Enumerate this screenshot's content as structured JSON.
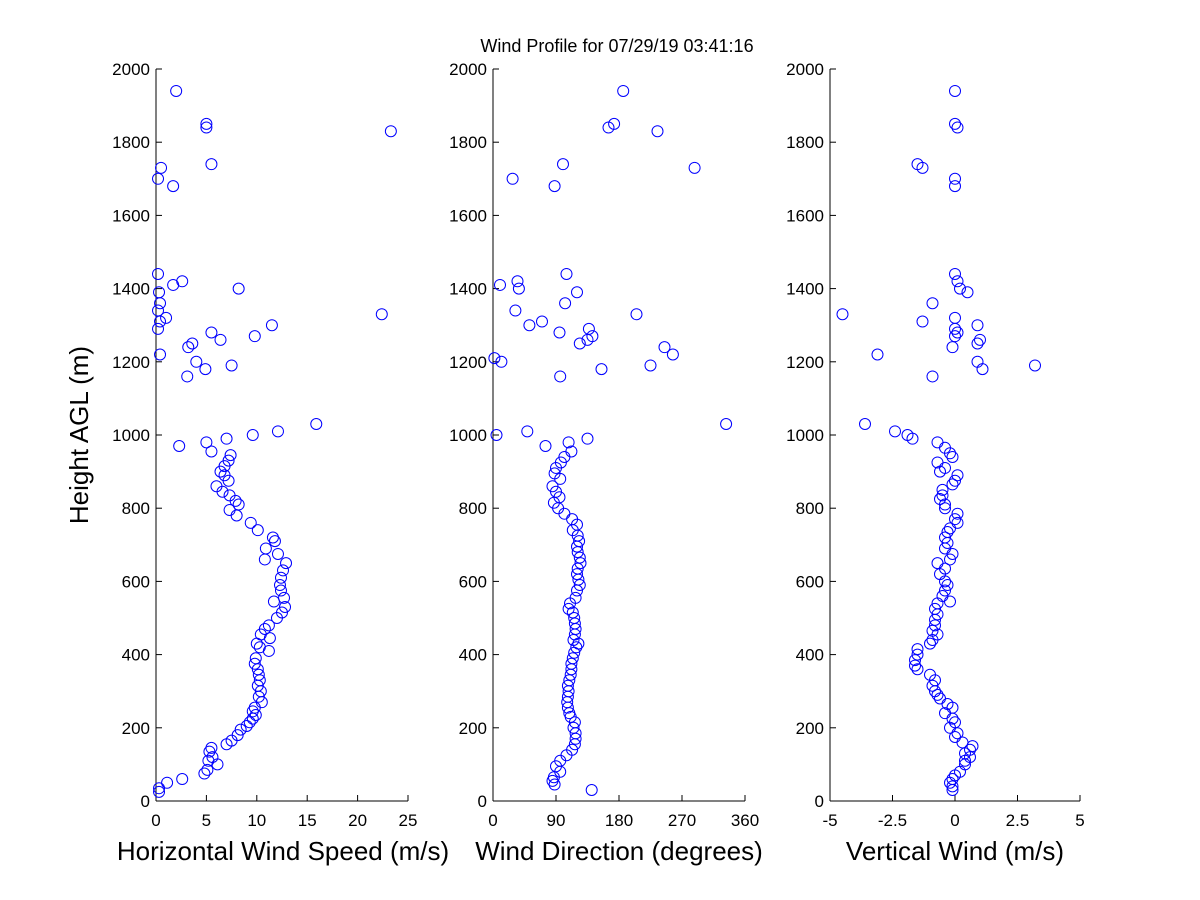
{
  "chart_data": {
    "title": "Wind Profile for  07/29/19 03:41:16",
    "ylabel": "Height AGL (m)",
    "ylim": [
      0,
      2000
    ],
    "yticks": [
      "0",
      "200",
      "400",
      "600",
      "800",
      "1000",
      "1200",
      "1400",
      "1600",
      "1800",
      "2000"
    ],
    "subplots": [
      {
        "id": "speed",
        "type": "scatter",
        "xlabel": "Horizontal Wind Speed (m/s)",
        "xlim": [
          0,
          25
        ],
        "xticks": [
          0,
          5,
          10,
          15,
          20,
          25
        ],
        "xtick_labels": [
          "0",
          "5",
          "10",
          "15",
          "20",
          "25"
        ],
        "color": "#0000ff",
        "points": [
          [
            2,
            1940
          ],
          [
            5,
            1850
          ],
          [
            5,
            1840
          ],
          [
            23.3,
            1830
          ],
          [
            5.5,
            1740
          ],
          [
            0.5,
            1730
          ],
          [
            0.2,
            1700
          ],
          [
            1.7,
            1680
          ],
          [
            0.2,
            1440
          ],
          [
            2.6,
            1420
          ],
          [
            1.7,
            1410
          ],
          [
            8.2,
            1400
          ],
          [
            0.3,
            1390
          ],
          [
            0.4,
            1360
          ],
          [
            0.2,
            1340
          ],
          [
            22.4,
            1330
          ],
          [
            1,
            1320
          ],
          [
            0.4,
            1310
          ],
          [
            11.5,
            1300
          ],
          [
            0.2,
            1290
          ],
          [
            5.5,
            1280
          ],
          [
            9.8,
            1270
          ],
          [
            6.4,
            1260
          ],
          [
            3.6,
            1250
          ],
          [
            3.2,
            1240
          ],
          [
            0.4,
            1220
          ],
          [
            4,
            1200
          ],
          [
            7.5,
            1190
          ],
          [
            4.9,
            1180
          ],
          [
            3.1,
            1160
          ],
          [
            15.9,
            1030
          ],
          [
            12.1,
            1010
          ],
          [
            9.6,
            1000
          ],
          [
            7,
            990
          ],
          [
            5,
            980
          ],
          [
            2.3,
            970
          ],
          [
            5.5,
            955
          ],
          [
            7.4,
            945
          ],
          [
            7.2,
            930
          ],
          [
            6.8,
            915
          ],
          [
            6.4,
            900
          ],
          [
            6.8,
            890
          ],
          [
            7.2,
            875
          ],
          [
            6,
            860
          ],
          [
            6.6,
            845
          ],
          [
            7.3,
            835
          ],
          [
            7.9,
            820
          ],
          [
            8.2,
            810
          ],
          [
            7.3,
            795
          ],
          [
            8,
            780
          ],
          [
            9.4,
            760
          ],
          [
            10.1,
            740
          ],
          [
            11.6,
            720
          ],
          [
            11.8,
            710
          ],
          [
            10.9,
            690
          ],
          [
            12.1,
            675
          ],
          [
            10.8,
            660
          ],
          [
            12.9,
            650
          ],
          [
            12.6,
            630
          ],
          [
            12.4,
            610
          ],
          [
            12.3,
            590
          ],
          [
            12.4,
            575
          ],
          [
            12.7,
            555
          ],
          [
            11.7,
            545
          ],
          [
            12.8,
            530
          ],
          [
            12.5,
            515
          ],
          [
            12,
            500
          ],
          [
            11.2,
            480
          ],
          [
            10.8,
            470
          ],
          [
            10.4,
            455
          ],
          [
            11.3,
            445
          ],
          [
            10,
            430
          ],
          [
            10.3,
            420
          ],
          [
            11.2,
            410
          ],
          [
            9.9,
            390
          ],
          [
            9.8,
            375
          ],
          [
            10.1,
            360
          ],
          [
            10.2,
            345
          ],
          [
            10.3,
            330
          ],
          [
            10.1,
            315
          ],
          [
            10.4,
            300
          ],
          [
            10.2,
            285
          ],
          [
            10.5,
            270
          ],
          [
            9.8,
            255
          ],
          [
            9.6,
            245
          ],
          [
            9.9,
            235
          ],
          [
            9.6,
            225
          ],
          [
            9.3,
            215
          ],
          [
            9,
            205
          ],
          [
            8.4,
            195
          ],
          [
            8.1,
            180
          ],
          [
            7.5,
            165
          ],
          [
            7,
            155
          ],
          [
            5.5,
            145
          ],
          [
            5.3,
            135
          ],
          [
            5.6,
            120
          ],
          [
            5.2,
            110
          ],
          [
            6.1,
            100
          ],
          [
            5.1,
            85
          ],
          [
            4.8,
            75
          ],
          [
            2.6,
            60
          ],
          [
            1.1,
            50
          ],
          [
            0.3,
            35
          ],
          [
            0.3,
            25
          ]
        ]
      },
      {
        "id": "direction",
        "type": "scatter",
        "xlabel": "Wind Direction (degrees)",
        "xlim": [
          0,
          360
        ],
        "xticks": [
          0,
          90,
          180,
          270,
          360
        ],
        "xtick_labels": [
          "0",
          "90",
          "180",
          "270",
          "360"
        ],
        "color": "#0000ff",
        "points": [
          [
            186,
            1940
          ],
          [
            173,
            1850
          ],
          [
            165,
            1840
          ],
          [
            235,
            1830
          ],
          [
            100,
            1740
          ],
          [
            288,
            1730
          ],
          [
            28,
            1700
          ],
          [
            88,
            1680
          ],
          [
            105,
            1440
          ],
          [
            35,
            1420
          ],
          [
            10,
            1410
          ],
          [
            37,
            1400
          ],
          [
            120,
            1390
          ],
          [
            103,
            1360
          ],
          [
            32,
            1340
          ],
          [
            205,
            1330
          ],
          [
            52,
            1300
          ],
          [
            70,
            1310
          ],
          [
            95,
            1280
          ],
          [
            137,
            1290
          ],
          [
            142,
            1270
          ],
          [
            135,
            1260
          ],
          [
            124,
            1250
          ],
          [
            245,
            1240
          ],
          [
            257,
            1220
          ],
          [
            2,
            1210
          ],
          [
            12,
            1200
          ],
          [
            225,
            1190
          ],
          [
            155,
            1180
          ],
          [
            96,
            1160
          ],
          [
            333,
            1030
          ],
          [
            49,
            1010
          ],
          [
            5,
            1000
          ],
          [
            135,
            990
          ],
          [
            108,
            980
          ],
          [
            75,
            970
          ],
          [
            112,
            955
          ],
          [
            102,
            940
          ],
          [
            97,
            925
          ],
          [
            90,
            910
          ],
          [
            88,
            895
          ],
          [
            96,
            880
          ],
          [
            85,
            860
          ],
          [
            90,
            845
          ],
          [
            95,
            830
          ],
          [
            87,
            815
          ],
          [
            93,
            800
          ],
          [
            102,
            785
          ],
          [
            113,
            770
          ],
          [
            120,
            755
          ],
          [
            114,
            740
          ],
          [
            121,
            725
          ],
          [
            123,
            710
          ],
          [
            120,
            695
          ],
          [
            121,
            680
          ],
          [
            124,
            665
          ],
          [
            125,
            650
          ],
          [
            121,
            635
          ],
          [
            120,
            620
          ],
          [
            122,
            605
          ],
          [
            124,
            590
          ],
          [
            120,
            575
          ],
          [
            118,
            555
          ],
          [
            110,
            540
          ],
          [
            108,
            525
          ],
          [
            114,
            515
          ],
          [
            116,
            500
          ],
          [
            117,
            485
          ],
          [
            118,
            470
          ],
          [
            117,
            455
          ],
          [
            115,
            440
          ],
          [
            122,
            430
          ],
          [
            119,
            420
          ],
          [
            116,
            405
          ],
          [
            114,
            390
          ],
          [
            112,
            375
          ],
          [
            112,
            360
          ],
          [
            111,
            345
          ],
          [
            109,
            330
          ],
          [
            107,
            315
          ],
          [
            108,
            300
          ],
          [
            107,
            285
          ],
          [
            106,
            270
          ],
          [
            107,
            255
          ],
          [
            109,
            240
          ],
          [
            111,
            230
          ],
          [
            117,
            215
          ],
          [
            115,
            200
          ],
          [
            118,
            185
          ],
          [
            118,
            170
          ],
          [
            117,
            155
          ],
          [
            113,
            140
          ],
          [
            105,
            125
          ],
          [
            96,
            110
          ],
          [
            90,
            95
          ],
          [
            96,
            80
          ],
          [
            87,
            65
          ],
          [
            85,
            55
          ],
          [
            88,
            45
          ],
          [
            141,
            30
          ]
        ]
      },
      {
        "id": "vertical",
        "type": "scatter",
        "xlabel": "Vertical Wind (m/s)",
        "xlim": [
          -5,
          5
        ],
        "xticks": [
          -5,
          -2.5,
          0,
          2.5,
          5
        ],
        "xtick_labels": [
          "-5",
          "-2.5",
          "0",
          "2.5",
          "5"
        ],
        "color": "#0000ff",
        "points": [
          [
            0,
            1940
          ],
          [
            0,
            1850
          ],
          [
            0.1,
            1840
          ],
          [
            -1.5,
            1740
          ],
          [
            -1.3,
            1730
          ],
          [
            0,
            1700
          ],
          [
            0,
            1680
          ],
          [
            0,
            1440
          ],
          [
            0.1,
            1420
          ],
          [
            0.2,
            1400
          ],
          [
            0.5,
            1390
          ],
          [
            -0.9,
            1360
          ],
          [
            -4.5,
            1330
          ],
          [
            0,
            1320
          ],
          [
            -1.3,
            1310
          ],
          [
            0.9,
            1300
          ],
          [
            0,
            1290
          ],
          [
            0.1,
            1280
          ],
          [
            0,
            1270
          ],
          [
            1,
            1260
          ],
          [
            0.9,
            1250
          ],
          [
            -0.1,
            1240
          ],
          [
            -3.1,
            1220
          ],
          [
            0.9,
            1200
          ],
          [
            3.2,
            1190
          ],
          [
            1.1,
            1180
          ],
          [
            -0.9,
            1160
          ],
          [
            -3.6,
            1030
          ],
          [
            -2.4,
            1010
          ],
          [
            -1.9,
            1000
          ],
          [
            -1.7,
            990
          ],
          [
            -0.7,
            980
          ],
          [
            -0.4,
            965
          ],
          [
            -0.2,
            950
          ],
          [
            -0.1,
            940
          ],
          [
            -0.7,
            925
          ],
          [
            -0.4,
            910
          ],
          [
            -0.6,
            900
          ],
          [
            0.1,
            890
          ],
          [
            0,
            875
          ],
          [
            -0.1,
            865
          ],
          [
            -0.5,
            850
          ],
          [
            -0.5,
            835
          ],
          [
            -0.6,
            825
          ],
          [
            -0.4,
            810
          ],
          [
            -0.4,
            800
          ],
          [
            0.1,
            785
          ],
          [
            0,
            770
          ],
          [
            0.1,
            760
          ],
          [
            -0.2,
            745
          ],
          [
            -0.3,
            735
          ],
          [
            -0.4,
            720
          ],
          [
            -0.3,
            705
          ],
          [
            -0.4,
            690
          ],
          [
            -0.1,
            675
          ],
          [
            -0.2,
            660
          ],
          [
            -0.7,
            650
          ],
          [
            -0.4,
            635
          ],
          [
            -0.6,
            620
          ],
          [
            -0.4,
            600
          ],
          [
            -0.3,
            590
          ],
          [
            -0.4,
            575
          ],
          [
            -0.5,
            560
          ],
          [
            -0.2,
            545
          ],
          [
            -0.7,
            540
          ],
          [
            -0.8,
            525
          ],
          [
            -0.7,
            510
          ],
          [
            -0.8,
            495
          ],
          [
            -0.8,
            480
          ],
          [
            -0.9,
            465
          ],
          [
            -0.7,
            455
          ],
          [
            -0.9,
            440
          ],
          [
            -1,
            430
          ],
          [
            -1.5,
            415
          ],
          [
            -1.5,
            400
          ],
          [
            -1.6,
            385
          ],
          [
            -1.6,
            370
          ],
          [
            -1.5,
            360
          ],
          [
            -1,
            345
          ],
          [
            -0.8,
            330
          ],
          [
            -0.9,
            315
          ],
          [
            -0.8,
            300
          ],
          [
            -0.7,
            290
          ],
          [
            -0.6,
            280
          ],
          [
            -0.3,
            265
          ],
          [
            -0.1,
            255
          ],
          [
            -0.4,
            240
          ],
          [
            -0.1,
            225
          ],
          [
            0,
            215
          ],
          [
            -0.2,
            200
          ],
          [
            0.1,
            185
          ],
          [
            0,
            175
          ],
          [
            0.3,
            160
          ],
          [
            0.7,
            150
          ],
          [
            0.6,
            140
          ],
          [
            0.4,
            130
          ],
          [
            0.6,
            120
          ],
          [
            0.4,
            110
          ],
          [
            0.4,
            100
          ],
          [
            0.2,
            80
          ],
          [
            0,
            70
          ],
          [
            -0.1,
            60
          ],
          [
            -0.2,
            50
          ],
          [
            -0.1,
            40
          ],
          [
            -0.1,
            30
          ]
        ]
      }
    ]
  }
}
